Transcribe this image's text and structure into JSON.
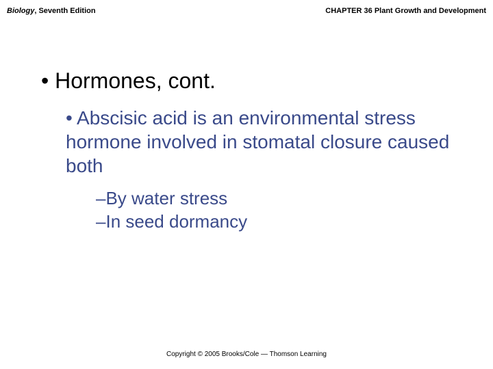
{
  "header": {
    "book_title_italic": "Biology",
    "book_title_rest": ", Seventh Edition",
    "chapter": "CHAPTER 36 Plant Growth and Development"
  },
  "slide": {
    "title_bullet": "• ",
    "title": "Hormones, cont.",
    "sub_bullet": "• ",
    "sub_text": "Abscisic acid is an environmental stress hormone involved in stomatal closure caused both",
    "points": [
      {
        "dash": "–",
        "text": "By water stress"
      },
      {
        "dash": "–",
        "text": "In seed dormancy"
      }
    ]
  },
  "footer": {
    "copyright": "Copyright © 2005 Brooks/Cole — Thomson Learning"
  },
  "style": {
    "title_color": "#000000",
    "body_color": "#3a4a8a",
    "title_fontsize": 32,
    "sub_fontsize": 28,
    "point_fontsize": 26,
    "header_fontsize": 11,
    "footer_fontsize": 10,
    "background": "#ffffff"
  }
}
